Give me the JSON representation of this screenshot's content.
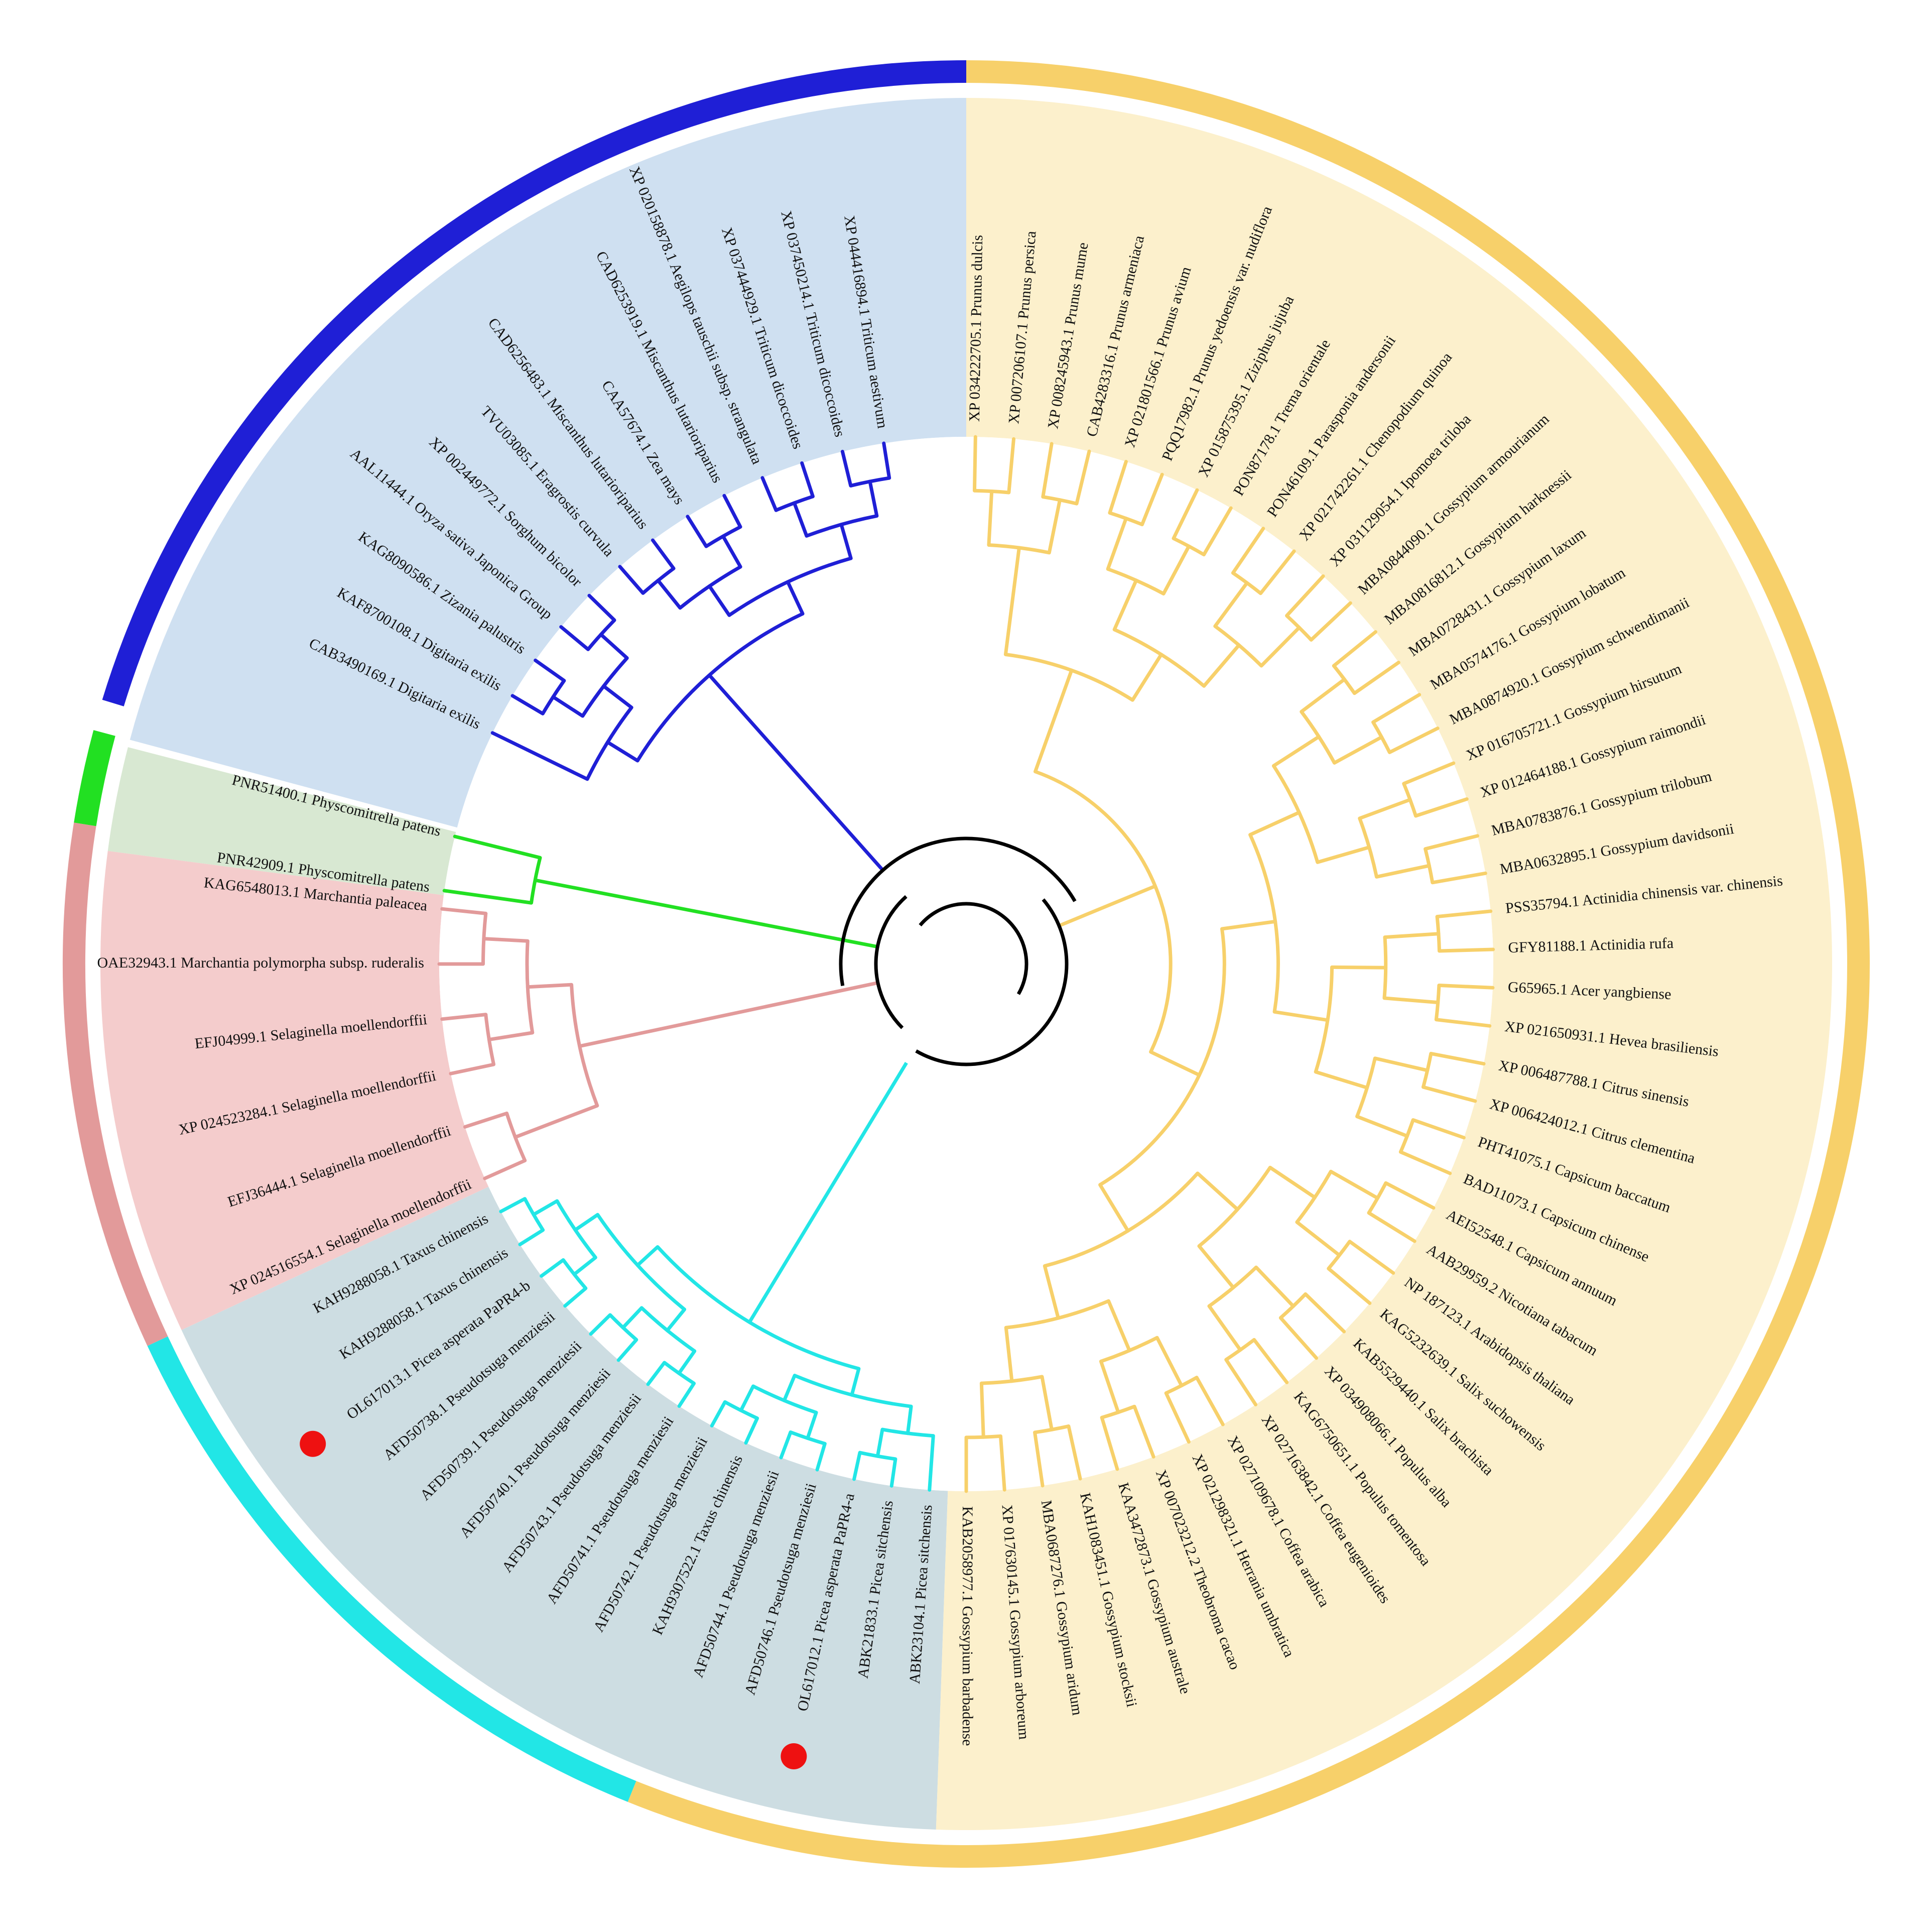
{
  "colors": {
    "monocot": "#1f1fd6",
    "dicot": "#f7d06a",
    "moss": "#22e022",
    "liverwort_lycophyte": "#e29a9a",
    "gymnosperm": "#22e6e6",
    "backbone": "#000000",
    "marker": "#ee1111",
    "bg_monocot": "#cfe0f1",
    "bg_dicot": "#fcf0cc",
    "bg_moss": "#d8e8d2",
    "bg_liverwort": "#f4cccc",
    "bg_gymnosperm": "#cddde2"
  },
  "icons": {
    "marker": "red-dot-marker-icon"
  },
  "clades": {
    "monocot": [
      "XP 044416894.1 Triticum aestivum",
      "XP 037450214.1 Triticum dicoccoides",
      "XP 037444929.1 Triticum dicoccoides",
      "XP 020158878.1 Aegilops tauschii subsp. strangulata",
      "CAD6253919.1 Miscanthus lutarioriparius",
      "CAA57674.1 Zea mays",
      "CAD6256483.1 Miscanthus lutarioriparius",
      "TVU03085.1 Eragrostis curvula",
      "XP 002449772.1 Sorghum bicolor",
      "AAL11444.1 Oryza sativa Japonica Group",
      "KAG8090586.1 Zizania palustris",
      "KAF8700108.1 Digitaria exilis",
      "CAB3490169.1 Digitaria exilis"
    ],
    "moss": [
      "PNR51400.1 Physcomitrella patens",
      "PNR42909.1 Physcomitrella patens"
    ],
    "liverwort_lycophyte": [
      "KAG6548013.1 Marchantia paleacea",
      "OAE32943.1 Marchantia polymorpha subsp. ruderalis",
      "EFJ04999.1 Selaginella moellendorffii",
      "XP 024523284.1 Selaginella moellendorffii",
      "EFJ36444.1 Selaginella moellendorffii",
      "XP 024516554.1 Selaginella moellendorffii"
    ],
    "gymnosperm": [
      "KAH9288058.1 Taxus chinensis",
      "KAH9288058.1 Taxus chinensis",
      "OL617013.1 Picea asperata PaPR4-b",
      "AFD50738.1 Pseudotsuga menziesii",
      "AFD50739.1 Pseudotsuga menziesii",
      "AFD50740.1 Pseudotsuga menziesii",
      "AFD50743.1 Pseudotsuga menziesii",
      "AFD50741.1 Pseudotsuga menziesii",
      "AFD50742.1 Pseudotsuga menziesii",
      "KAH9307522.1 Taxus chinensis",
      "AFD50744.1 Pseudotsuga menziesii",
      "AFD50746.1 Pseudotsuga menziesii",
      "OL617012.1 Picea asperata PaPR4-a",
      "ABK21833.1 Picea sitchensis",
      "ABK23104.1 Picea sitchensis"
    ],
    "dicot": [
      "KAB2058977.1 Gossypium barbadense",
      "XP 017630145.1 Gossypium arboreum",
      "MBA0687276.1 Gossypium aridum",
      "KAH1083451.1 Gossypium stocksii",
      "KAA3472873.1 Gossypium australe",
      "XP 007023212.2 Theobroma cacao",
      "XP 021298321.1 Herrania umbratica",
      "XP 027109678.1 Coffea arabica",
      "XP 027163842.1 Coffea eugenioides",
      "KAG6750651.1 Populus tomentosa",
      "XP 034908066.1 Populus alba",
      "KAB5529440.1 Salix brachista",
      "KAG5232639.1 Salix suchowensis",
      "NP 187123.1 Arabidopsis thaliana",
      "AAB29959.2 Nicotiana tabacum",
      "AEI52548.1 Capsicum annuum",
      "BAD11073.1 Capsicum chinense",
      "PHT41075.1 Capsicum baccatum",
      "XP 006424012.1 Citrus clementina",
      "XP 006487788.1 Citrus sinensis",
      "XP 021650931.1 Hevea brasiliensis",
      "G65965.1 Acer yangbiense",
      "GFY81188.1 Actinidia rufa",
      "PSS35794.1 Actinidia chinensis var. chinensis",
      "MBA0632895.1 Gossypium davidsonii",
      "MBA0783876.1 Gossypium trilobum",
      "XP 012464188.1 Gossypium raimondii",
      "XP 016705721.1 Gossypium hirsutum",
      "MBA0874920.1 Gossypium schwendimanii",
      "MBA0574176.1 Gossypium lobatum",
      "MBA0728431.1 Gossypium laxum",
      "MBA0816812.1 Gossypium harknessii",
      "MBA0844090.1 Gossypium armourianum",
      "XP 031129054.1 Ipomoea triloba",
      "XP 021742261.1 Chenopodium quinoa",
      "PON46109.1 Parasponia andersonii",
      "PON87178.1 Trema orientale",
      "XP 015875395.1 Ziziphus jujuba",
      "PQQ17982.1 Prunus yedoensis var. nudiflora",
      "XP 021801566.1 Prunus avium",
      "CAB4283316.1 Prunus armeniaca",
      "XP 008245943.1 Prunus mume",
      "XP 007206107.1 Prunus persica",
      "XP 034222705.1 Prunus dulcis"
    ]
  },
  "marked_leaves": [
    "OL617013.1 Picea asperata PaPR4-b",
    "OL617012.1 Picea asperata PaPR4-a"
  ]
}
